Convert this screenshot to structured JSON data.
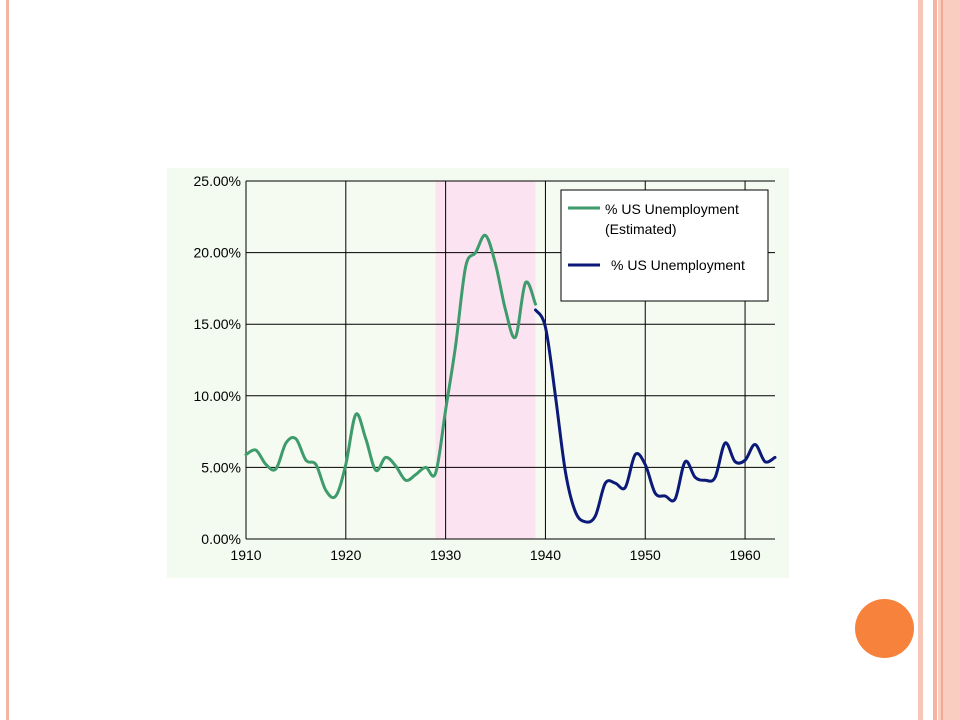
{
  "chart_data": {
    "type": "line",
    "title": "",
    "xlabel": "",
    "ylabel": "",
    "xlim": [
      1910,
      1963
    ],
    "ylim": [
      0,
      25
    ],
    "x_ticks": [
      "1910",
      "1920",
      "1930",
      "1940",
      "1950",
      "1960"
    ],
    "y_ticks": [
      "0.00%",
      "5.00%",
      "10.00%",
      "15.00%",
      "20.00%",
      "25.00%"
    ],
    "grid": true,
    "legend_position": "top-right",
    "shaded_region": {
      "from": 1929,
      "to": 1939,
      "color": "#fbe3f1"
    },
    "series": [
      {
        "name": "% US Unemployment (Estimated)",
        "legend_lines": [
          "% US Unemployment",
          "(Estimated)"
        ],
        "color": "#3e9b6c",
        "x": [
          1910,
          1911,
          1912,
          1913,
          1914,
          1915,
          1916,
          1917,
          1918,
          1919,
          1920,
          1921,
          1922,
          1923,
          1924,
          1925,
          1926,
          1927,
          1928,
          1929,
          1930,
          1931,
          1932,
          1933,
          1934,
          1935,
          1936,
          1937,
          1938,
          1939
        ],
        "y": [
          5.9,
          6.2,
          5.2,
          4.9,
          6.7,
          7.0,
          5.5,
          5.2,
          3.4,
          3.0,
          5.2,
          8.7,
          7.0,
          4.8,
          5.7,
          5.1,
          4.1,
          4.5,
          5.0,
          4.6,
          9.0,
          13.5,
          19.0,
          20.0,
          21.2,
          19.2,
          16.0,
          14.1,
          17.9,
          16.4
        ]
      },
      {
        "name": "% US Unemployment",
        "legend_lines": [
          "% US Unemployment"
        ],
        "color": "#0b1a78",
        "x": [
          1939,
          1940,
          1941,
          1942,
          1943,
          1944,
          1945,
          1946,
          1947,
          1948,
          1949,
          1950,
          1951,
          1952,
          1953,
          1954,
          1955,
          1956,
          1957,
          1958,
          1959,
          1960,
          1961,
          1962,
          1963
        ],
        "y": [
          16.0,
          14.8,
          10.0,
          4.7,
          1.9,
          1.2,
          1.6,
          3.9,
          3.9,
          3.6,
          5.9,
          5.2,
          3.2,
          3.0,
          2.8,
          5.4,
          4.3,
          4.1,
          4.3,
          6.7,
          5.4,
          5.5,
          6.6,
          5.4,
          5.7
        ]
      }
    ]
  },
  "theme": {
    "accent": "#f7823c",
    "band_color": "#f6c7b8",
    "plot_bg": "#f5fbf1"
  }
}
